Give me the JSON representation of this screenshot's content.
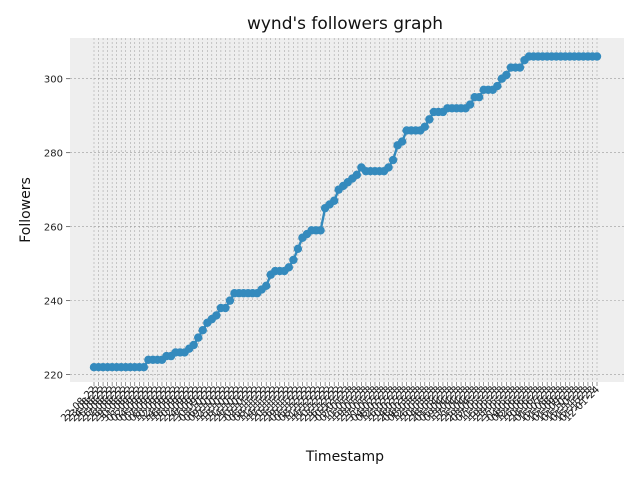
{
  "chart_data": {
    "type": "line",
    "title": "wynd's followers graph",
    "xlabel": "Timestamp",
    "ylabel": "Followers",
    "ylim": [
      218,
      311
    ],
    "yticks": [
      220,
      240,
      260,
      280,
      300
    ],
    "grid": true,
    "colors": {
      "line": "#348abd",
      "plot_bg": "#eeeeee",
      "grid": "#9a9a9a"
    },
    "x": [
      "22-08-22",
      "23-08-22",
      "24-08-22",
      "25-08-22",
      "26-08-22",
      "27-08-22",
      "28-08-22",
      "29-08-22",
      "30-08-22",
      "31-08-22",
      "01-09-22",
      "02-09-22",
      "04-09-22",
      "05-09-22",
      "07-09-22",
      "08-09-22",
      "10-09-22",
      "12-09-22",
      "14-09-22",
      "16-09-22",
      "18-09-22",
      "20-09-22",
      "22-09-22",
      "24-09-22",
      "27-09-22",
      "30-09-22",
      "03-10-22",
      "06-10-22",
      "09-10-22",
      "12-10-22",
      "15-10-22",
      "18-10-22",
      "21-10-22",
      "24-10-22",
      "27-10-22",
      "30-10-22",
      "02-11-22",
      "05-11-22",
      "08-11-22",
      "11-11-22",
      "14-11-22",
      "17-11-22",
      "20-11-22",
      "23-11-22",
      "26-11-22",
      "29-11-22",
      "02-12-22",
      "05-12-22",
      "08-12-22",
      "11-12-22",
      "14-12-22",
      "17-12-22",
      "20-12-22",
      "23-12-22",
      "26-12-22",
      "30-12-22",
      "03-01-23",
      "07-01-23",
      "11-01-23",
      "15-01-23",
      "19-01-23",
      "23-01-23",
      "27-01-23",
      "31-01-23",
      "04-02-23",
      "08-02-23",
      "12-02-23",
      "16-02-23",
      "20-02-23",
      "24-02-23",
      "28-02-23",
      "04-03-23",
      "08-03-23",
      "12-03-23",
      "16-03-23",
      "20-03-23",
      "24-03-23",
      "28-03-23",
      "01-04-23",
      "05-04-23",
      "09-04-23",
      "13-04-23",
      "17-04-23",
      "21-04-23",
      "25-04-23",
      "29-04-23",
      "03-05-23",
      "07-05-23",
      "11-05-23",
      "15-05-23",
      "19-05-23",
      "23-05-23",
      "27-05-23",
      "31-05-23",
      "04-06-23",
      "08-06-23",
      "12-06-23",
      "16-06-23",
      "20-06-23",
      "24-06-23",
      "01-07-23",
      "15-07-23",
      "01-08-23",
      "15-08-23",
      "01-09-23",
      "15-09-23",
      "01-10-23",
      "15-10-23",
      "01-11-23",
      "15-11-23",
      "01-12-23",
      "12-01-24"
    ],
    "series": [
      {
        "values": [
          222,
          222,
          222,
          222,
          222,
          222,
          222,
          222,
          222,
          222,
          222,
          222,
          224,
          224,
          224,
          224,
          225,
          225,
          226,
          226,
          226,
          227,
          228,
          230,
          232,
          234,
          235,
          236,
          238,
          238,
          240,
          242,
          242,
          242,
          242,
          242,
          242,
          243,
          244,
          247,
          248,
          248,
          248,
          249,
          251,
          254,
          257,
          258,
          259,
          259,
          259,
          265,
          266,
          267,
          270,
          271,
          272,
          273,
          274,
          276,
          275,
          275,
          275,
          275,
          275,
          276,
          278,
          282,
          283,
          286,
          286,
          286,
          286,
          287,
          289,
          291,
          291,
          291,
          292,
          292,
          292,
          292,
          292,
          293,
          295,
          295,
          297,
          297,
          297,
          298,
          300,
          301,
          303,
          303,
          303,
          305,
          306,
          306,
          306,
          306,
          306,
          306,
          306,
          306,
          306,
          306,
          306,
          306,
          306,
          306,
          306,
          306
        ]
      }
    ]
  }
}
